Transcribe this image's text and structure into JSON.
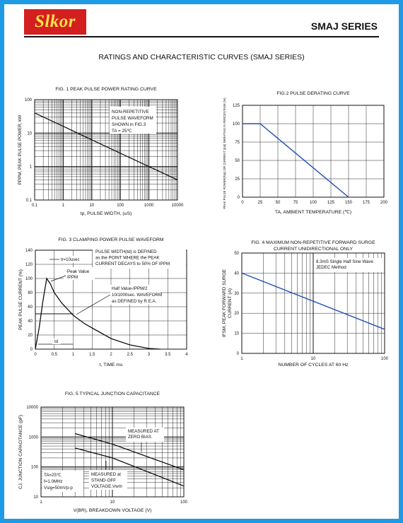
{
  "header": {
    "logo_text": "Slkor",
    "series_label": "SMAJ SERIES",
    "section_title": "RATINGS AND CHARACTERISTIC CURVES (SMAJ SERIES)"
  },
  "colors": {
    "frame": "#1e9be4",
    "logo_bg": "#d31f1f",
    "logo_text": "#ffe24a",
    "derating_line": "#1f4fb0"
  },
  "chart_data": [
    {
      "id": "fig1",
      "type": "line",
      "title": "FIG. 1 PEAK PULSE POWER RATING CURVE",
      "xlabel": "tp, PULSE WIDTH, (uS)",
      "ylabel": "PPPM, PEAK PULSE POWER, kW",
      "xscale": "log",
      "yscale": "log",
      "xlim": [
        0.1,
        10000
      ],
      "ylim": [
        0.1,
        100
      ],
      "xticks": [
        "0.1",
        "1",
        "10",
        "100",
        "1000",
        "10000"
      ],
      "yticks": [
        "0.1",
        "1",
        "10",
        "100"
      ],
      "grid": true,
      "annotation": [
        "NON-REPETITIVE",
        "PULSE WAVEFORM",
        "SHOWN in FIG.3",
        "TA = 25℃"
      ],
      "series": [
        {
          "x": [
            0.1,
            1,
            10,
            100,
            1000,
            10000
          ],
          "y": [
            40,
            16,
            6.3,
            2.5,
            1.0,
            0.4
          ]
        }
      ]
    },
    {
      "id": "fig2",
      "type": "line",
      "title": "FIG.2 PULSE DERATING CURVE",
      "xlabel": "TA, AMBIENT TEMPERATURE (℃)",
      "ylabel": "PEAK PULSE POWER(Ppp) OR CURRENT (Ipp) DERATING IN PERCENTAGE (%)",
      "xlim": [
        0,
        200
      ],
      "ylim": [
        0,
        125
      ],
      "xticks": [
        "0",
        "25",
        "50",
        "75",
        "100",
        "125",
        "150",
        "175",
        "200"
      ],
      "yticks": [
        "0",
        "25",
        "50",
        "75",
        "100",
        "125"
      ],
      "grid": true,
      "series": [
        {
          "x": [
            0,
            25,
            150
          ],
          "y": [
            100,
            100,
            0
          ]
        }
      ]
    },
    {
      "id": "fig3",
      "type": "line",
      "title": "FIG. 3 CLAMPING POWER PULSE WAVEFORM",
      "xlabel": "t, TIME ms",
      "ylabel": "PEAK PULSE CURRENT (%)",
      "xlim": [
        0,
        4
      ],
      "ylim": [
        0,
        140
      ],
      "xticks": [
        "0",
        "0.5",
        "1",
        "1.5",
        "2",
        "2.5",
        "3",
        "3.5",
        "4"
      ],
      "yticks": [
        "0",
        "20",
        "40",
        "60",
        "80",
        "100",
        "120",
        "140"
      ],
      "grid": true,
      "annotations": {
        "tr": "tr=10usec",
        "pulse_width": [
          "PULSE WIDTH(td) is DEFINED",
          "as the POINT WHERE the PEAK",
          "CURRENT DECAYS to 50% OF IPPM"
        ],
        "peak": [
          "Peak Value",
          "IPPM"
        ],
        "half": [
          "Half Value-IPPM/2",
          "10/1000sec. WAVEFORM",
          "as DEFINED by R.E.A."
        ],
        "td": "td"
      },
      "series": [
        {
          "x": [
            0,
            0.1,
            0.2,
            0.3,
            0.4,
            0.5,
            0.7,
            1.0,
            1.3,
            1.5,
            2.0,
            2.5,
            3.0,
            3.3
          ],
          "y": [
            0,
            30,
            68,
            100,
            92,
            80,
            65,
            48,
            36,
            30,
            15,
            6,
            1,
            0
          ]
        }
      ]
    },
    {
      "id": "fig4",
      "type": "line",
      "title": "FIG. 4 MAXIMUM NON-REPETITIVE FORWARD SURGE",
      "subtitle": "CURRENT UNIDIRECTIONAL ONLY",
      "xlabel": "NUMBER OF CYCLES AT 60 Hz",
      "ylabel": "IFSM, PEAK FORWARD SURGE CURRENT (A)",
      "xscale": "log",
      "xlim": [
        1,
        100
      ],
      "ylim": [
        0,
        50
      ],
      "xticks": [
        "1",
        "10",
        "100"
      ],
      "yticks": [
        "0",
        "10",
        "20",
        "30",
        "40",
        "50"
      ],
      "grid": true,
      "annotation": [
        "8.3mS Single Half Sine Wave",
        "JEDEC Method"
      ],
      "series": [
        {
          "x": [
            1,
            100
          ],
          "y": [
            40,
            12
          ]
        }
      ]
    },
    {
      "id": "fig5",
      "type": "line",
      "title": "FIG. 5 TYPICAL JUNCTION CAPACITANCE",
      "xlabel": "V(BR), BREAKDOWN VOLTAGE (V)",
      "ylabel": "CJ, JUNCTION CAPACITANCE (pF)",
      "xscale": "log",
      "yscale": "log",
      "xlim": [
        1,
        100
      ],
      "ylim": [
        10,
        10000
      ],
      "xticks": [
        "1",
        "10",
        "100"
      ],
      "yticks": [
        "10",
        "100",
        "1000",
        "10000"
      ],
      "grid": true,
      "annotations": {
        "zero_bias": [
          "MEASURED AT",
          "ZERO BIAS"
        ],
        "conditions": [
          "TA=25℃",
          "f=1.0MHz",
          "Vsig=50mVp-p"
        ],
        "standoff": [
          "MEASURED at",
          "STAND-OFF",
          "VOLTAGE,Vwm"
        ]
      },
      "series": [
        {
          "x": [
            3,
            10,
            100
          ],
          "y": [
            1300,
            580,
            80
          ]
        },
        {
          "x": [
            3,
            10,
            100
          ],
          "y": [
            430,
            200,
            23
          ]
        }
      ]
    }
  ]
}
